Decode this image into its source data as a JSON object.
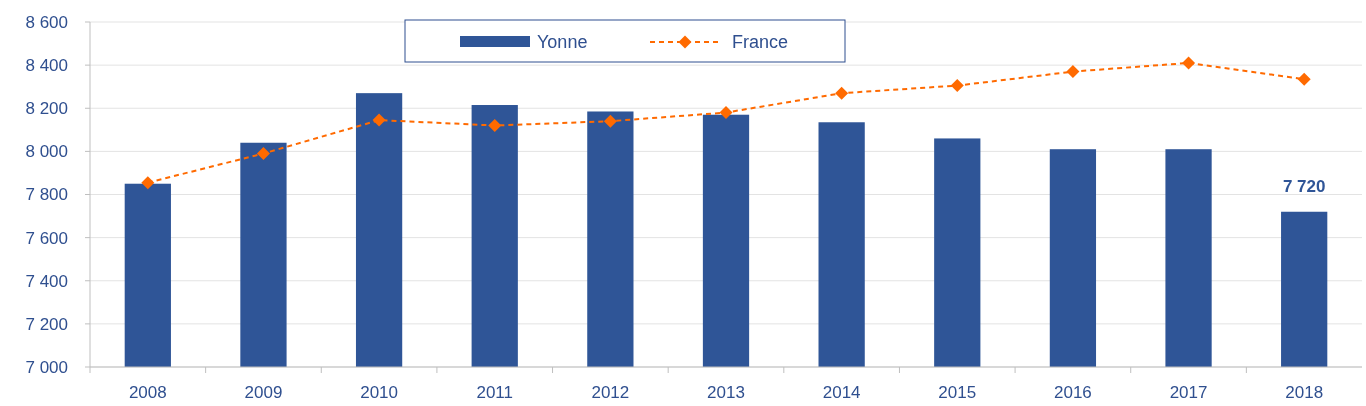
{
  "chart_data": {
    "type": "bar",
    "categories": [
      "2008",
      "2009",
      "2010",
      "2011",
      "2012",
      "2013",
      "2014",
      "2015",
      "2016",
      "2017",
      "2018"
    ],
    "series": [
      {
        "name": "Yonne",
        "color": "#2f5597",
        "values": [
          7850,
          8040,
          8270,
          8215,
          8185,
          8170,
          8135,
          8060,
          8010,
          8010,
          7720
        ],
        "value_labels": [
          null,
          null,
          null,
          null,
          null,
          null,
          null,
          null,
          null,
          null,
          "7 720"
        ]
      },
      {
        "name": "France",
        "type": "line",
        "color": "#ff6a00",
        "values": [
          7855,
          7990,
          8145,
          8120,
          8140,
          8180,
          8270,
          8305,
          8370,
          8410,
          8335
        ],
        "marker": "diamond",
        "line_style": "dashed"
      }
    ],
    "ylim": [
      7000,
      8600
    ],
    "yticks": [
      {
        "value": 7000,
        "label": "7 000"
      },
      {
        "value": 7200,
        "label": "7 200"
      },
      {
        "value": 7400,
        "label": "7 400"
      },
      {
        "value": 7600,
        "label": "7 600"
      },
      {
        "value": 7800,
        "label": "7 800"
      },
      {
        "value": 8000,
        "label": "8 000"
      },
      {
        "value": 8200,
        "label": "8 200"
      },
      {
        "value": 8400,
        "label": "8 400"
      },
      {
        "value": 8600,
        "label": "8 600"
      }
    ],
    "grid": "y",
    "legend": "top"
  }
}
